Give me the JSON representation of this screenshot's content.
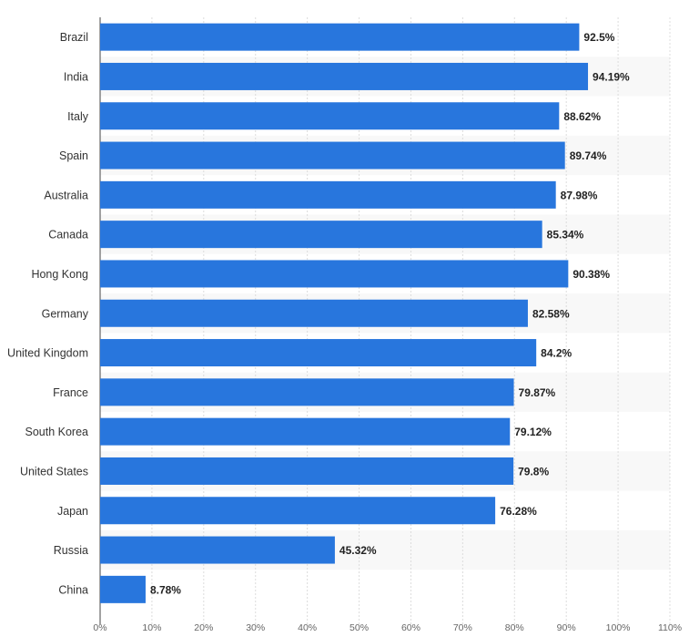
{
  "chart_data": {
    "type": "bar",
    "orientation": "horizontal",
    "categories": [
      "Brazil",
      "India",
      "Italy",
      "Spain",
      "Australia",
      "Canada",
      "Hong Kong",
      "Germany",
      "United Kingdom",
      "France",
      "South Korea",
      "United States",
      "Japan",
      "Russia",
      "China"
    ],
    "values": [
      92.5,
      94.19,
      88.62,
      89.74,
      87.98,
      85.34,
      90.38,
      82.58,
      84.2,
      79.87,
      79.12,
      79.8,
      76.28,
      45.32,
      8.78
    ],
    "value_labels": [
      "92.5%",
      "94.19%",
      "88.62%",
      "89.74%",
      "87.98%",
      "85.34%",
      "90.38%",
      "82.58%",
      "84.2%",
      "79.87%",
      "79.12%",
      "79.8%",
      "76.28%",
      "45.32%",
      "8.78%"
    ],
    "xlim": [
      0,
      110
    ],
    "x_ticks": [
      0,
      10,
      20,
      30,
      40,
      50,
      60,
      70,
      80,
      90,
      100,
      110
    ],
    "x_tick_labels": [
      "0%",
      "10%",
      "20%",
      "30%",
      "40%",
      "50%",
      "60%",
      "70%",
      "80%",
      "90%",
      "100%",
      "110%"
    ],
    "grid": true,
    "bar_color": "#2876dd",
    "title": "",
    "xlabel": "",
    "ylabel": ""
  }
}
